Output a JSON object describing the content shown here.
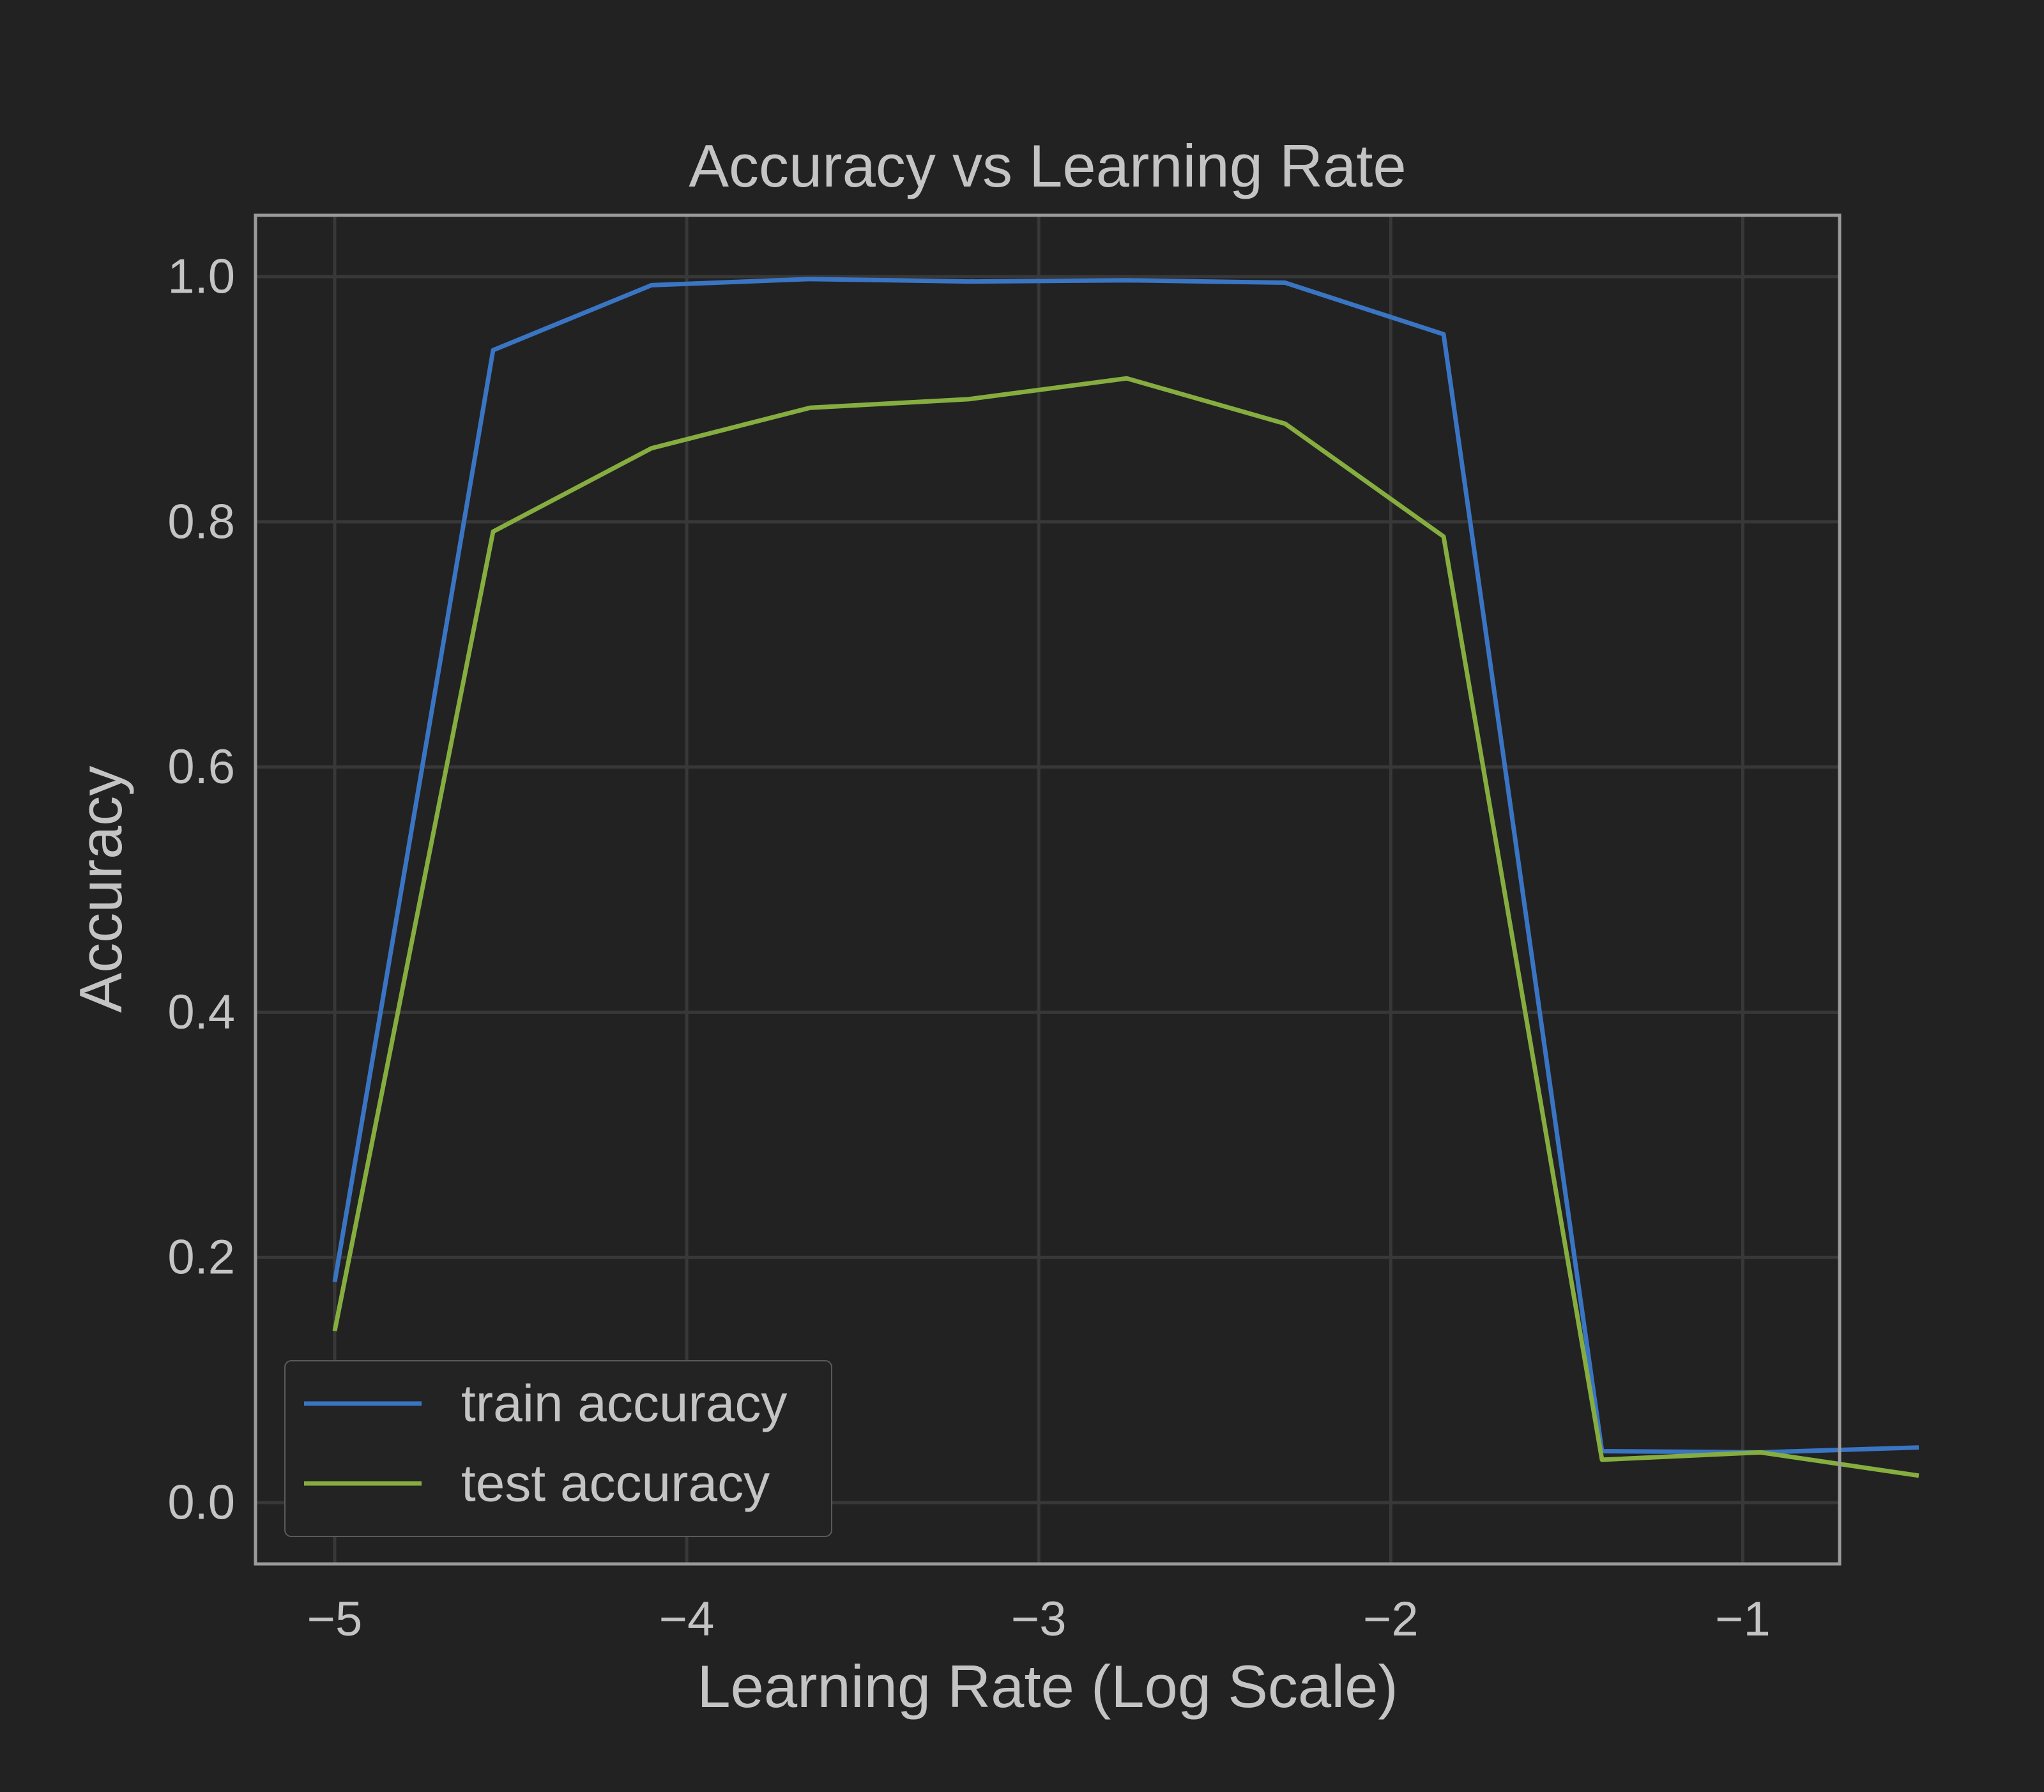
{
  "chart_data": {
    "type": "line",
    "title": "Accuracy vs Learning Rate",
    "xlabel": "Learning Rate (Log Scale)",
    "ylabel": "Accuracy",
    "xlim": [
      -5.225,
      -0.725
    ],
    "ylim": [
      -0.05,
      1.05
    ],
    "xticks": [
      -5,
      -4,
      -3,
      -2,
      -1
    ],
    "xtick_labels": [
      "−5",
      "−4",
      "−3",
      "−2",
      "−1"
    ],
    "yticks": [
      0.0,
      0.2,
      0.4,
      0.6,
      0.8,
      1.0
    ],
    "ytick_labels": [
      "0.0",
      "0.2",
      "0.4",
      "0.6",
      "0.8",
      "1.0"
    ],
    "grid": true,
    "legend_position": "lower-left",
    "x": [
      -5.0,
      -4.55,
      -4.1,
      -3.65,
      -3.2,
      -2.75,
      -2.3,
      -1.85,
      -1.4,
      -0.95,
      -0.5
    ],
    "series": [
      {
        "name": "train accuracy",
        "color": "#3a75c4",
        "values": [
          0.18,
          0.94,
          0.993,
          0.998,
          0.996,
          0.997,
          0.995,
          0.953,
          0.042,
          0.041,
          0.045
        ]
      },
      {
        "name": "test accuracy",
        "color": "#86ad3f",
        "values": [
          0.14,
          0.792,
          0.86,
          0.893,
          0.9,
          0.917,
          0.88,
          0.788,
          0.035,
          0.041,
          0.022
        ]
      }
    ]
  }
}
